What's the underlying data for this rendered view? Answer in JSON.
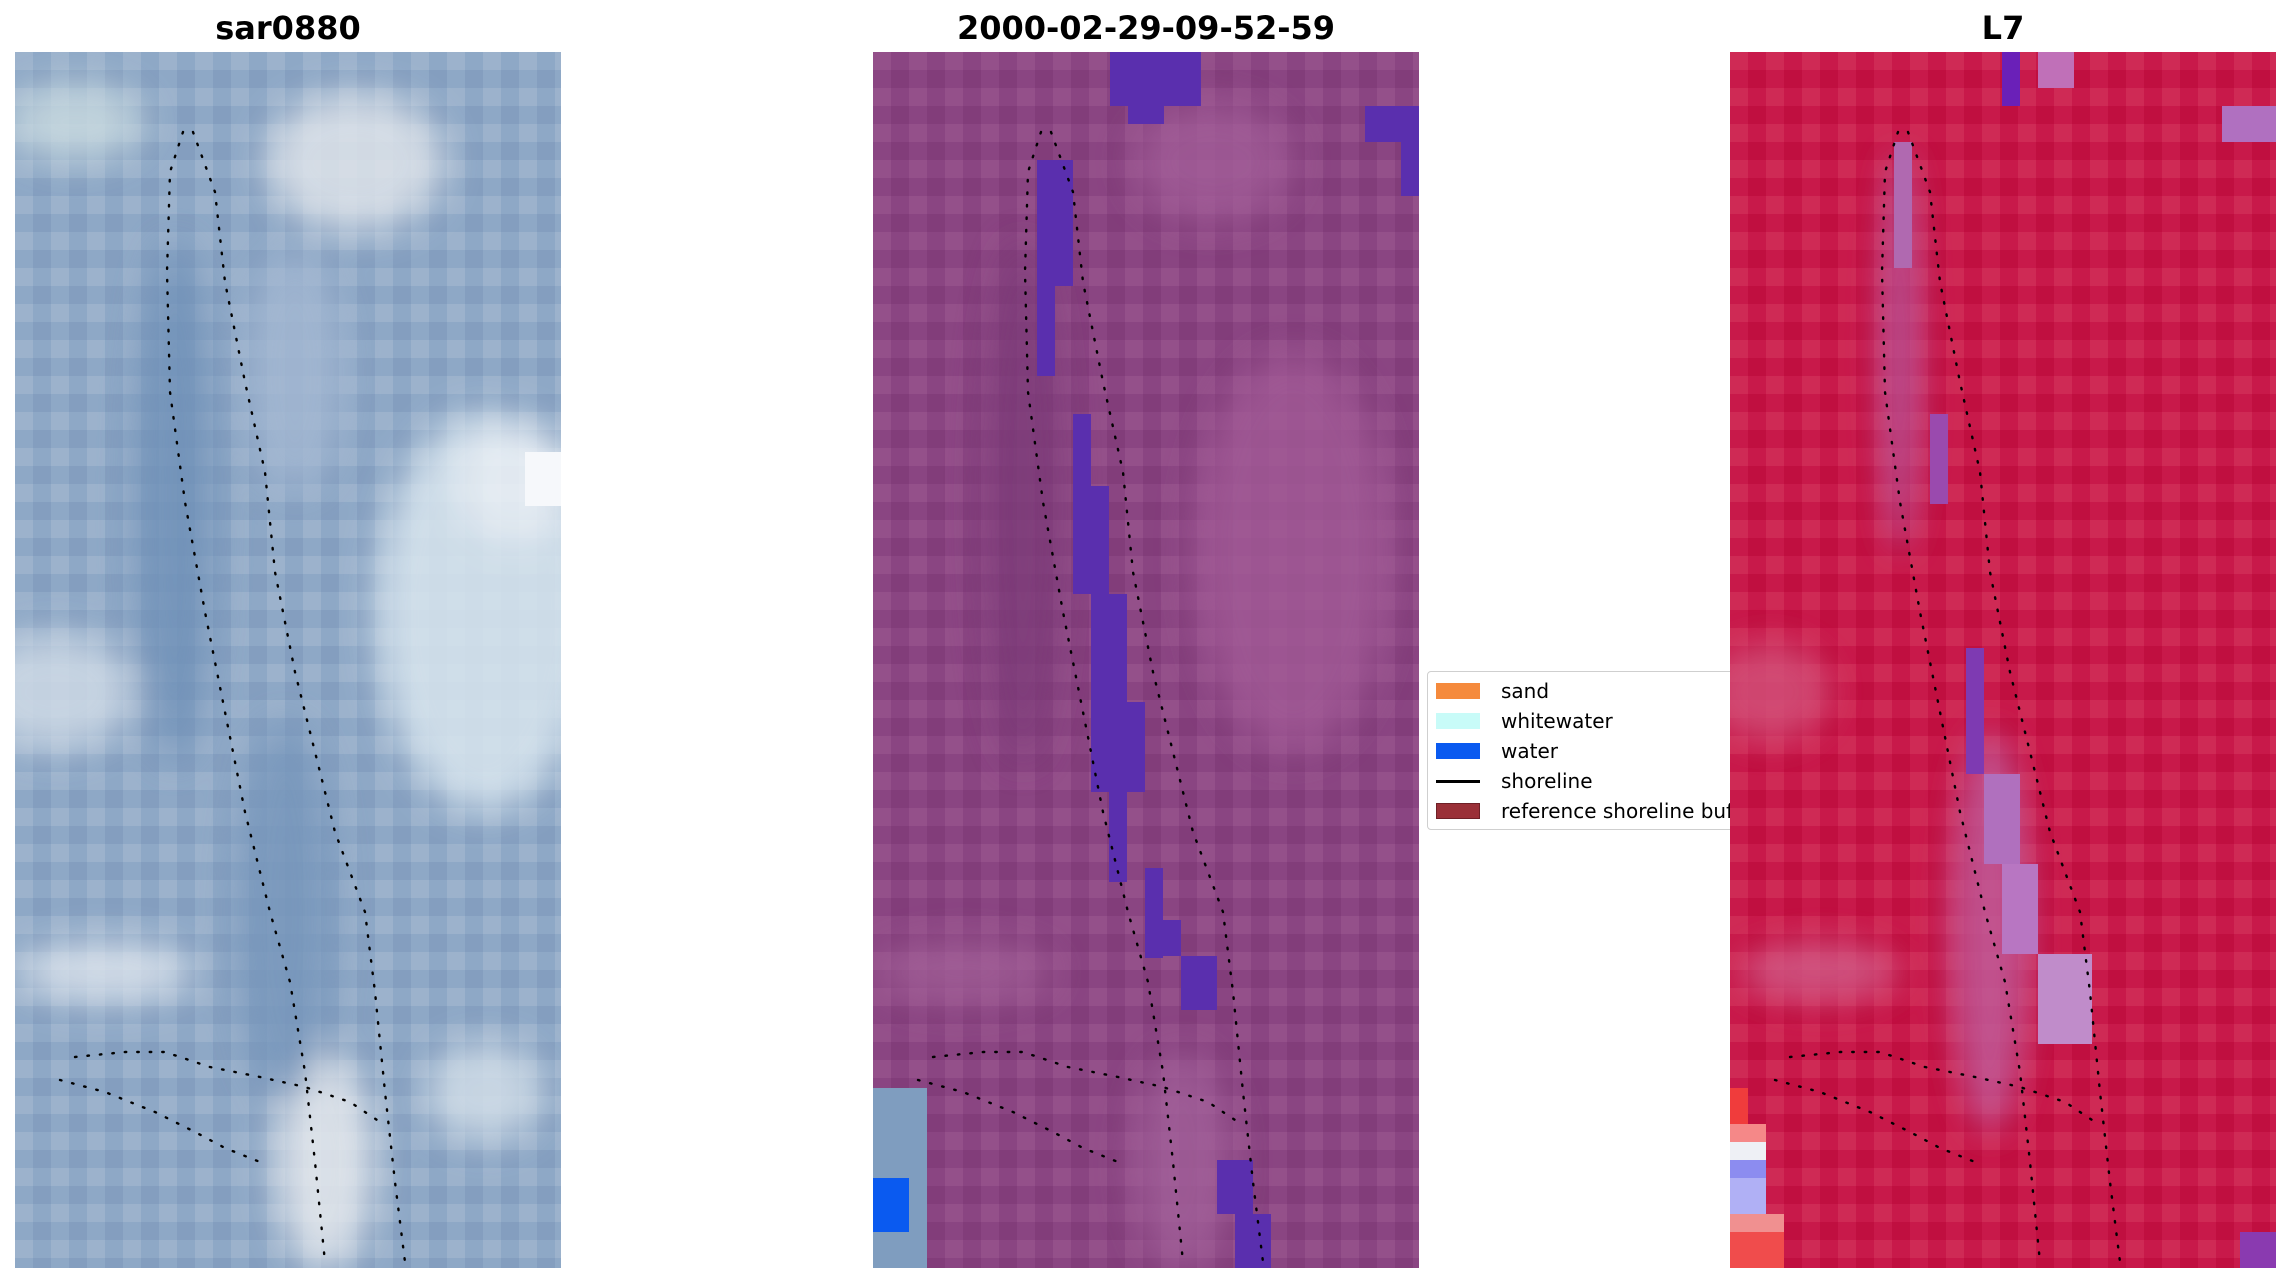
{
  "panels": [
    {
      "id": "rgb",
      "title": "sar0880"
    },
    {
      "id": "classified",
      "title": "2000-02-29-09-52-59"
    },
    {
      "id": "index",
      "title": "L7"
    }
  ],
  "legend": {
    "items": [
      {
        "label": "sand",
        "color": "#f58a3c",
        "kind": "patch"
      },
      {
        "label": "whitewater",
        "color": "#c8fbf8",
        "kind": "patch"
      },
      {
        "label": "water",
        "color": "#0a5af0",
        "kind": "patch"
      },
      {
        "label": "shoreline",
        "color": "#000000",
        "kind": "line"
      },
      {
        "label": "reference shoreline buffer",
        "color": "#9a3038",
        "kind": "patch"
      }
    ]
  },
  "colors": {
    "rgb_base": "#8aa4c4",
    "classified_base": "#8a4480",
    "water_class": "#5030b0",
    "index_base": "#c8194a",
    "shoreline": "#000000"
  }
}
